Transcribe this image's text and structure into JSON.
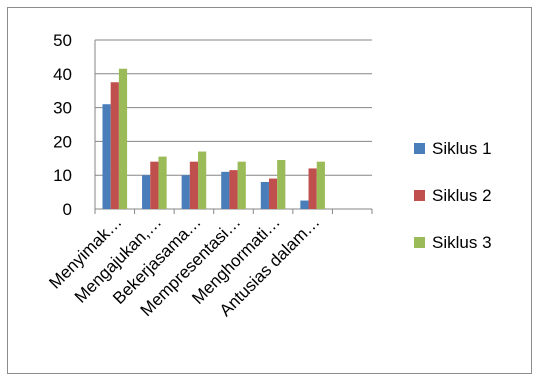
{
  "chart_data": {
    "type": "bar",
    "categories": [
      "Menyimak…",
      "Mengajukan,…",
      "Bekerjasama…",
      "Mempresentasi…",
      "Menghormati…",
      "Antusias dalam…"
    ],
    "series": [
      {
        "name": "Siklus 1",
        "color": "#4a7ebb",
        "values": [
          31,
          10,
          10,
          11,
          8,
          2.5
        ]
      },
      {
        "name": "Siklus 2",
        "color": "#c0504d",
        "values": [
          37.5,
          14,
          14,
          11.5,
          9,
          12
        ]
      },
      {
        "name": "Siklus 3",
        "color": "#9bbb59",
        "values": [
          41.5,
          15.5,
          17,
          14,
          14.5,
          14
        ]
      }
    ],
    "y_ticks": [
      "0",
      "10",
      "20",
      "30",
      "40",
      "50"
    ],
    "ylim": [
      0,
      50
    ],
    "grid": true,
    "legend": "right"
  }
}
